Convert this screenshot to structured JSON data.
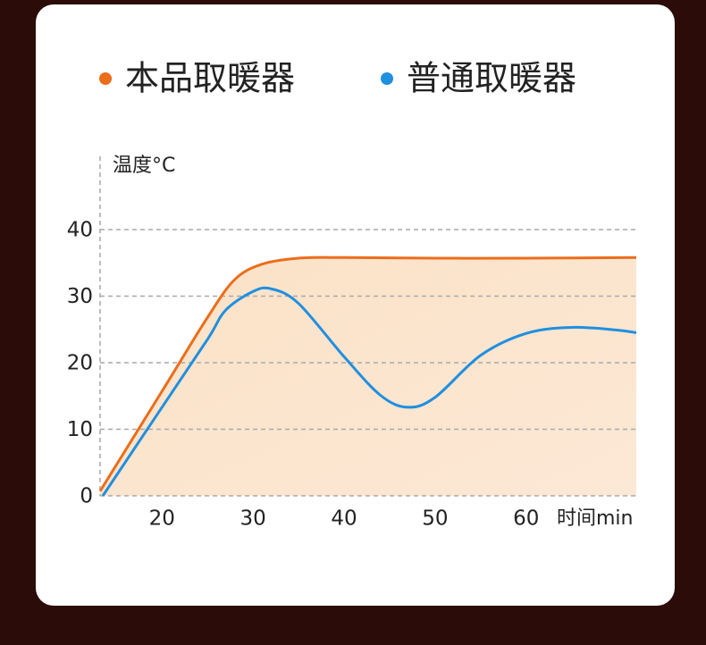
{
  "chart_data": {
    "type": "line",
    "y_label": "温度°C",
    "x_label": "时间min",
    "xlim": [
      13.2,
      72.1
    ],
    "xticks": [
      20,
      30,
      40,
      50,
      60
    ],
    "ylim": [
      0,
      51
    ],
    "yticks": [
      0,
      10,
      20,
      30,
      40
    ],
    "grid": true,
    "legend_position": "top",
    "series": [
      {
        "name": "本品取暖器",
        "color": "#ec6d1c",
        "area": true,
        "x": [
          13.2,
          20,
          25,
          28,
          31,
          35,
          40,
          50,
          60,
          72.1
        ],
        "values": [
          0.7,
          15.7,
          26.8,
          32.5,
          34.8,
          35.7,
          35.8,
          35.7,
          35.7,
          35.8
        ]
      },
      {
        "name": "普通取暖器",
        "color": "#1f8fe0",
        "area": false,
        "x": [
          13.5,
          20,
          25,
          27,
          30,
          32,
          35,
          40,
          44,
          47,
          50,
          55,
          60,
          65,
          70,
          72.1
        ],
        "values": [
          0,
          13.3,
          23.5,
          27.9,
          30.7,
          31.1,
          28.9,
          20.9,
          15.1,
          13.3,
          14.8,
          21.1,
          24.4,
          25.3,
          24.9,
          24.5
        ]
      }
    ]
  }
}
